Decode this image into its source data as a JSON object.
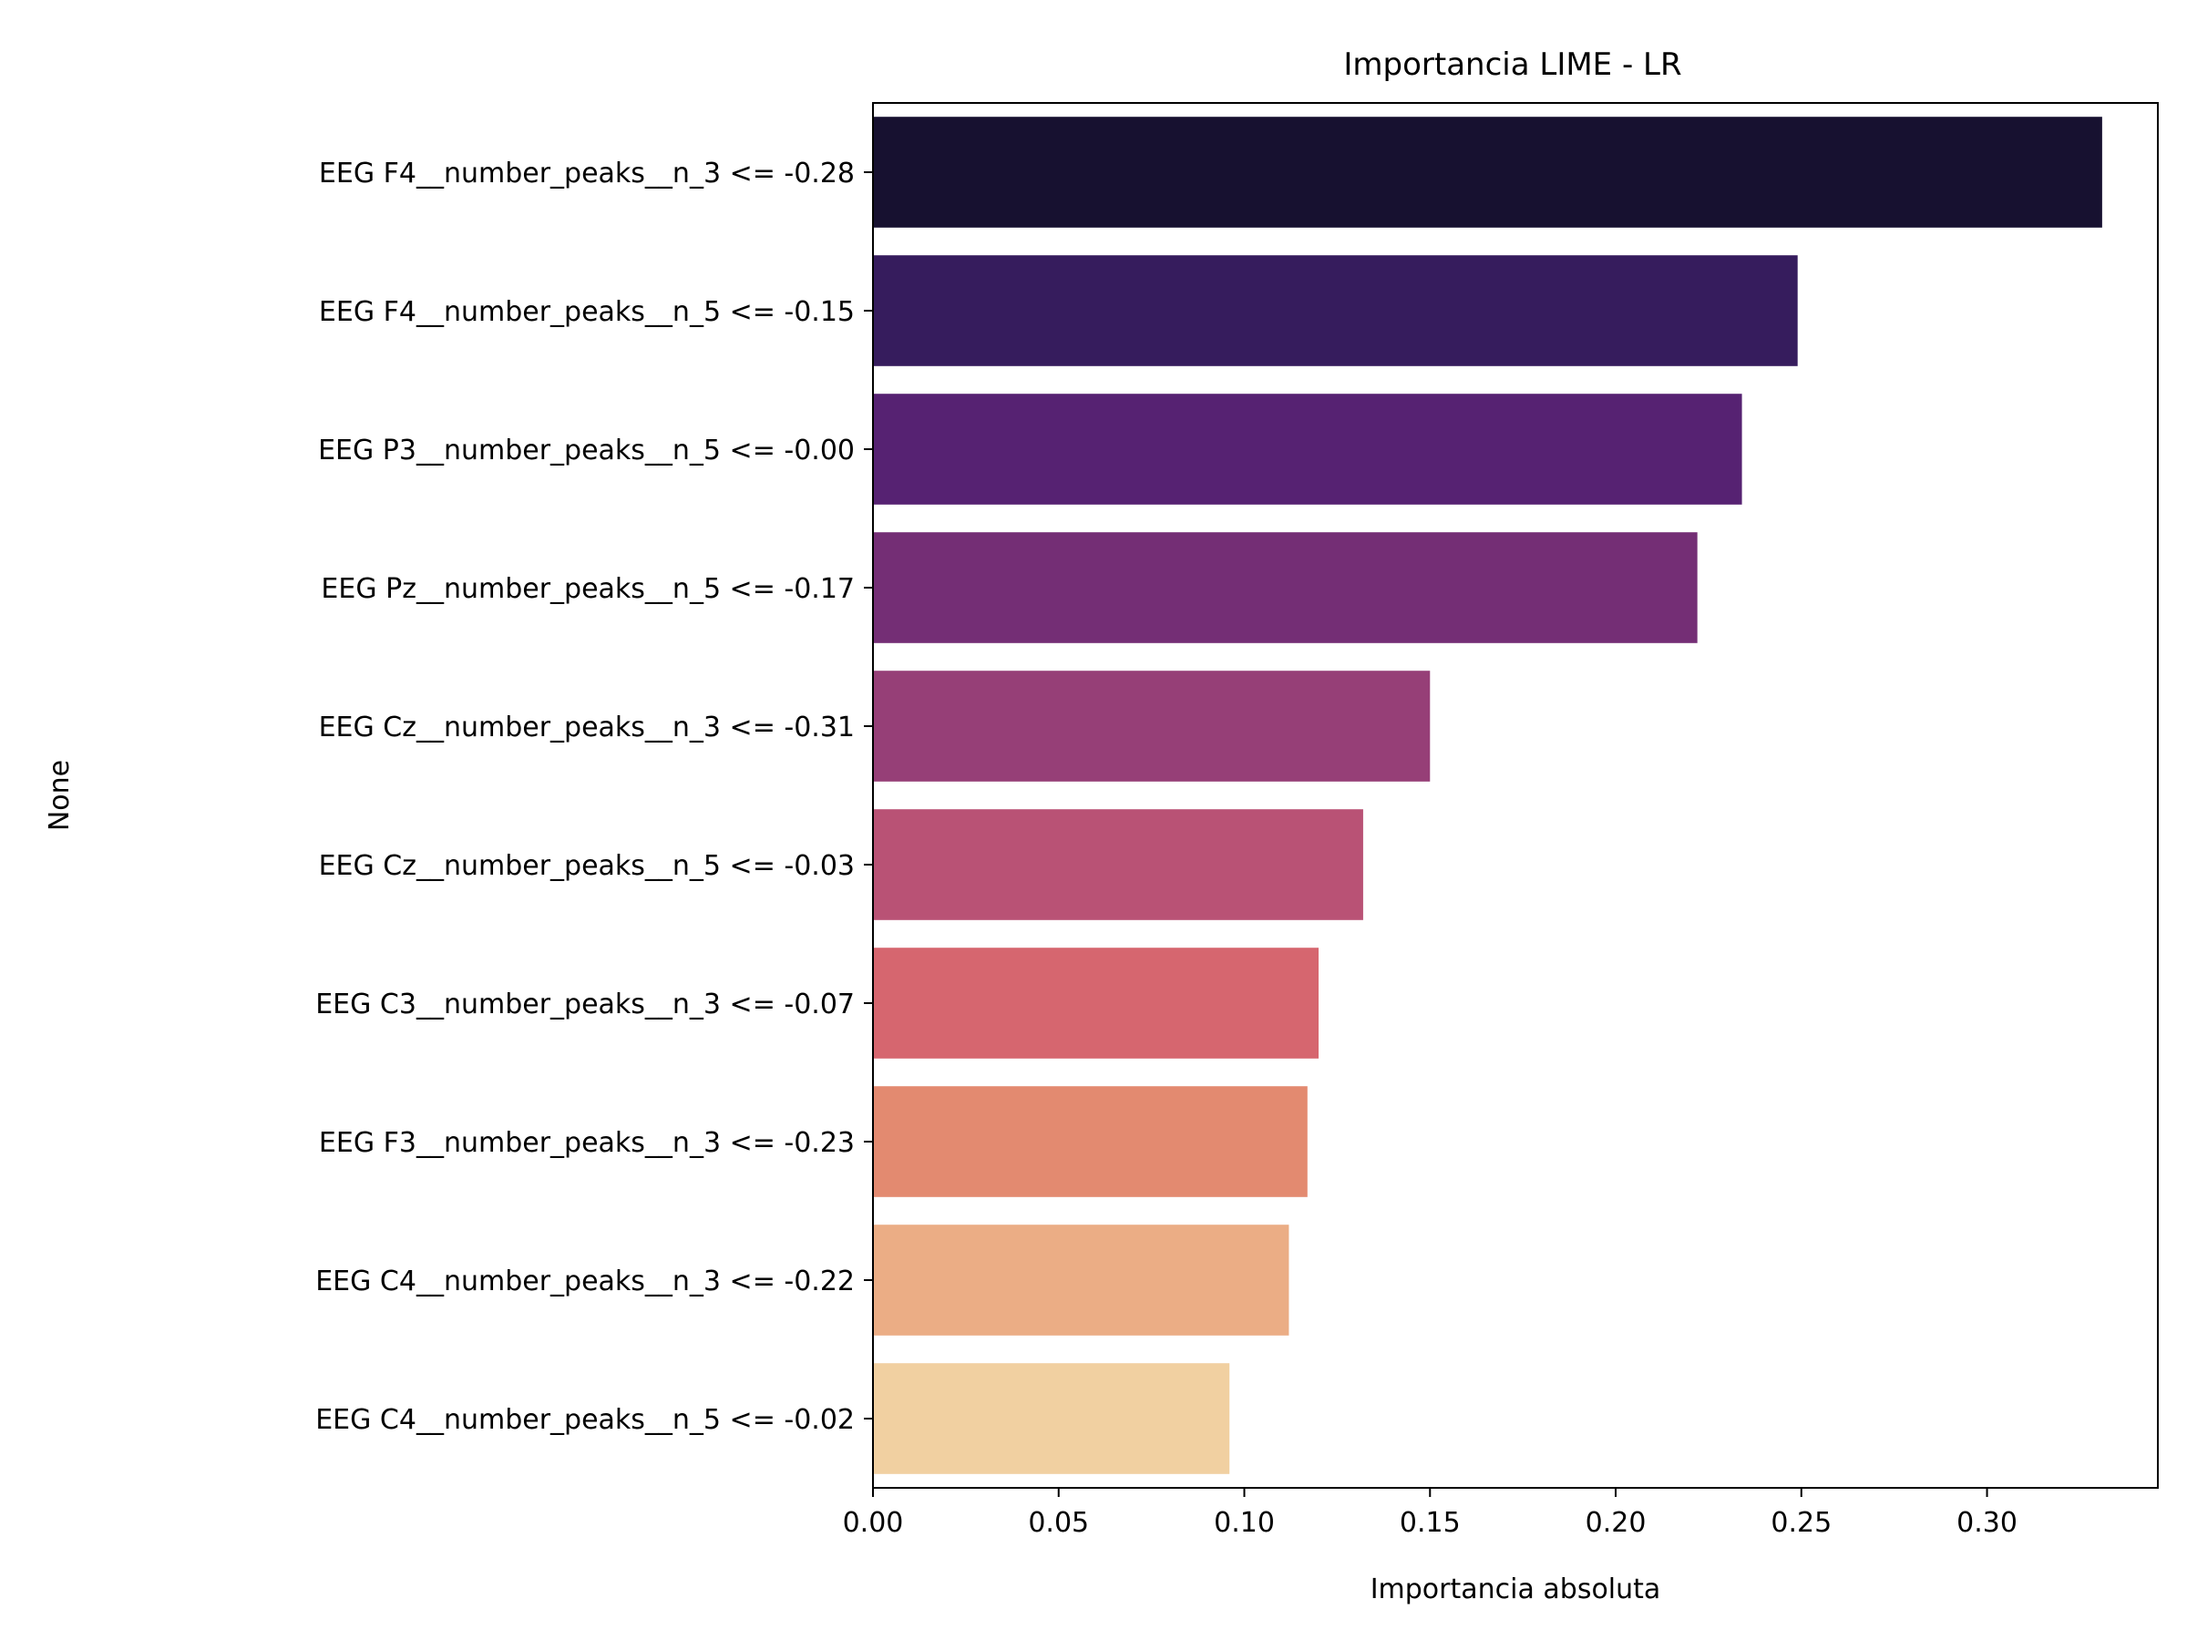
{
  "chart_data": {
    "type": "bar",
    "orientation": "horizontal",
    "title": "Importancia LIME - LR",
    "xlabel": "Importancia absoluta",
    "ylabel": "None",
    "xlim": [
      0,
      0.346
    ],
    "xticks": [
      0.0,
      0.05,
      0.1,
      0.15,
      0.2,
      0.25,
      0.3
    ],
    "xtick_labels": [
      "0.00",
      "0.05",
      "0.10",
      "0.15",
      "0.20",
      "0.25",
      "0.30"
    ],
    "grid": false,
    "categories": [
      "EEG F4__number_peaks__n_3 <= -0.28",
      "EEG F4__number_peaks__n_5 <= -0.15",
      "EEG P3__number_peaks__n_5 <= -0.00",
      "EEG Pz__number_peaks__n_5 <= -0.17",
      "EEG Cz__number_peaks__n_3 <= -0.31",
      "EEG Cz__number_peaks__n_5 <= -0.03",
      "EEG C3__number_peaks__n_3 <= -0.07",
      "EEG F3__number_peaks__n_3 <= -0.23",
      "EEG C4__number_peaks__n_3 <= -0.22",
      "EEG C4__number_peaks__n_5 <= -0.02"
    ],
    "values": [
      0.331,
      0.249,
      0.234,
      0.222,
      0.15,
      0.132,
      0.12,
      0.117,
      0.112,
      0.096
    ],
    "colors": [
      "#171130",
      "#361c5d",
      "#562272",
      "#742e75",
      "#963f77",
      "#b95275",
      "#d6666f",
      "#e38a70",
      "#ebad85",
      "#f1d0a1"
    ]
  }
}
